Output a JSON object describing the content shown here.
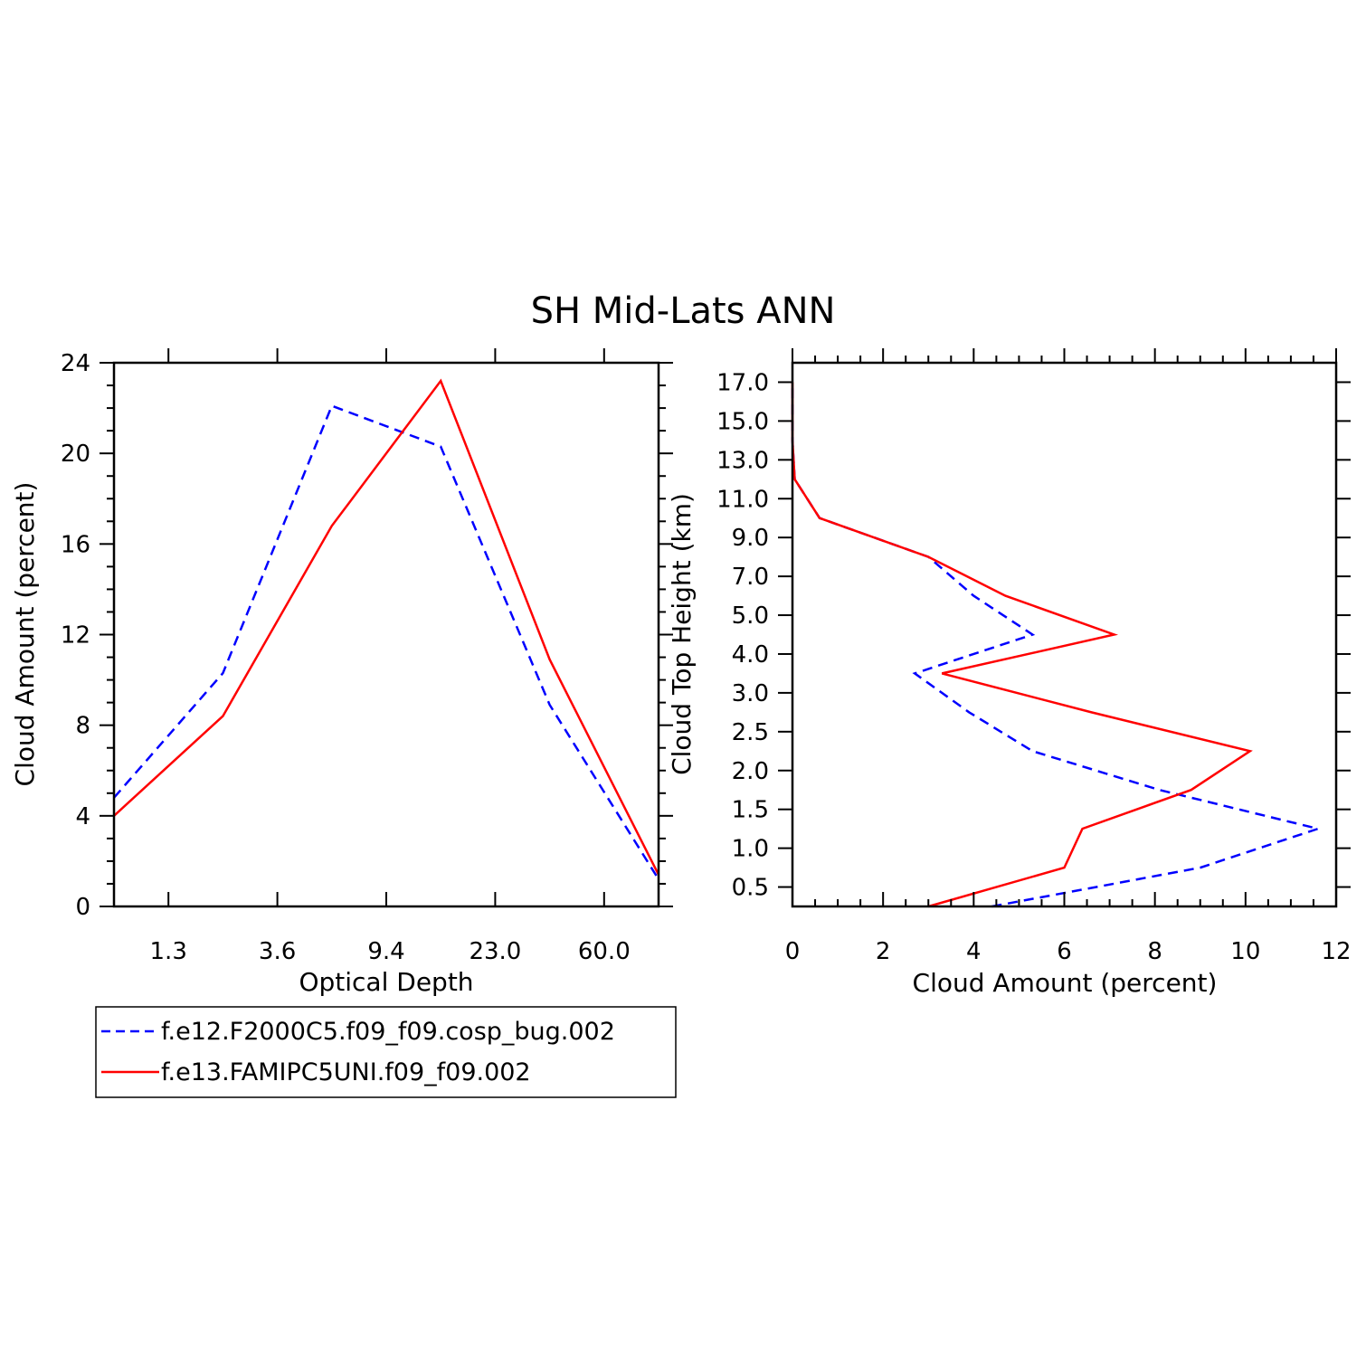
{
  "title": "SH Mid-Lats ANN",
  "colors": {
    "series_a": "#0000ff",
    "series_b": "#ff0000",
    "axes": "#000000"
  },
  "legend": {
    "placement": "bottom-left",
    "entries": [
      {
        "label": "f.e12.F2000C5.f09_f09.cosp_bug.002",
        "color": "#0000ff",
        "style": "dashed"
      },
      {
        "label": "f.e13.FAMIPC5UNI.f09_f09.002",
        "color": "#ff0000",
        "style": "solid"
      }
    ]
  },
  "chart_data": [
    {
      "type": "line",
      "xlabel": "Optical Depth",
      "ylabel": "Cloud Amount (percent)",
      "x_ticklabels": [
        "1.3",
        "3.6",
        "9.4",
        "23.0",
        "60.0"
      ],
      "x_tick_index": [
        0.5,
        1.5,
        2.5,
        3.5,
        4.5
      ],
      "x_index": [
        0,
        1,
        2,
        3,
        4,
        5
      ],
      "xlim": [
        0,
        5
      ],
      "ylim": [
        0,
        24
      ],
      "y_ticks": [
        0,
        4,
        8,
        12,
        16,
        20,
        24
      ],
      "series": [
        {
          "name": "f.e12.F2000C5.f09_f09.cosp_bug.002",
          "values": [
            4.8,
            10.3,
            22.1,
            20.3,
            8.9,
            1.2
          ]
        },
        {
          "name": "f.e13.FAMIPC5UNI.f09_f09.002",
          "values": [
            4.0,
            8.4,
            16.8,
            23.2,
            10.9,
            1.4
          ]
        }
      ]
    },
    {
      "type": "line",
      "xlabel": "Cloud Amount (percent)",
      "ylabel": "Cloud Top Height (km)",
      "xlim": [
        0,
        12
      ],
      "x_ticks": [
        0,
        2,
        4,
        6,
        8,
        10,
        12
      ],
      "y_ticklabels": [
        "0.5",
        "1.0",
        "1.5",
        "2.0",
        "2.5",
        "3.0",
        "4.0",
        "5.0",
        "7.0",
        "9.0",
        "11.0",
        "13.0",
        "15.0",
        "17.0"
      ],
      "y_tick_index": [
        0.5,
        1.5,
        2.5,
        3.5,
        4.5,
        5.5,
        6.5,
        7.5,
        8.5,
        9.5,
        10.5,
        11.5,
        12.5,
        13.5
      ],
      "y_index_range": [
        0,
        14
      ],
      "series": [
        {
          "name": "f.e12.F2000C5.f09_f09.cosp_bug.002",
          "x": [
            4.4,
            9.0,
            11.6,
            8.1,
            5.3,
            3.9,
            2.7,
            5.3,
            4.0,
            3.0,
            0.6,
            0.05,
            0.0,
            0.0
          ],
          "y_index": [
            0,
            1,
            2,
            3,
            4,
            5,
            6,
            7,
            8,
            9,
            10,
            11,
            12,
            13.5
          ]
        },
        {
          "name": "f.e13.FAMIPC5UNI.f09_f09.002",
          "x": [
            3.0,
            6.0,
            6.4,
            8.8,
            10.1,
            6.6,
            3.3,
            7.1,
            4.7,
            3.0,
            0.6,
            0.05,
            0.0,
            0.0
          ],
          "y_index": [
            0,
            1,
            2,
            3,
            4,
            5,
            6,
            7,
            8,
            9,
            10,
            11,
            12,
            13.5
          ]
        }
      ]
    }
  ]
}
